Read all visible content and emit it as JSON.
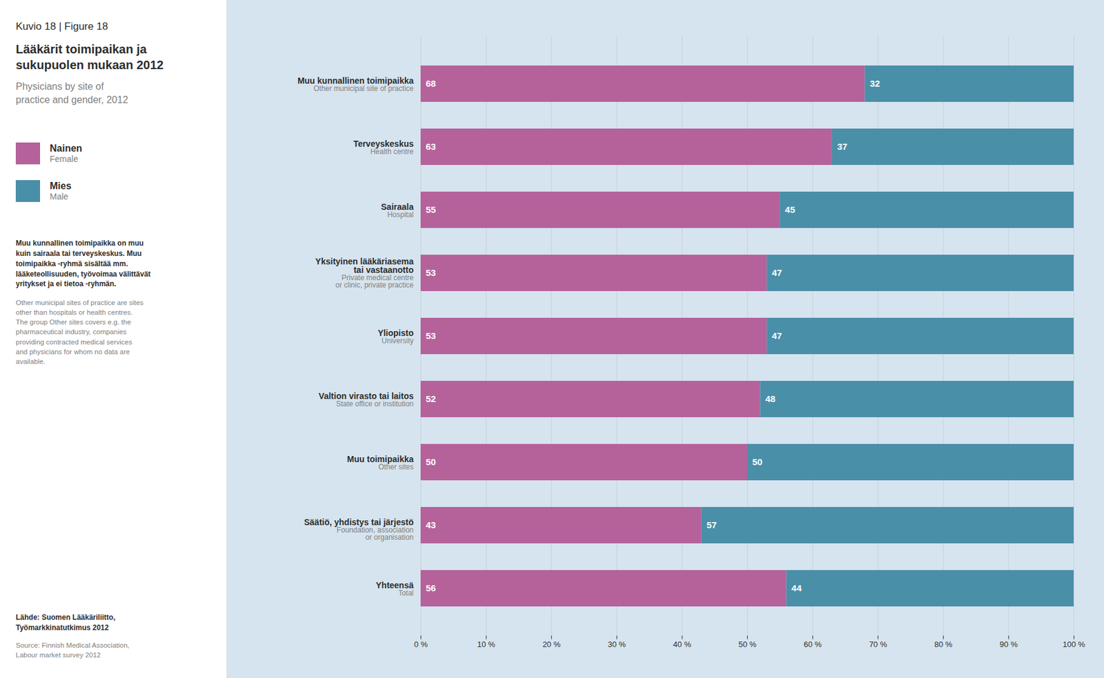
{
  "chart_data": {
    "type": "bar",
    "orientation": "horizontal",
    "stacked": true,
    "title": "Kuvio 18 | Figure 18",
    "subtitle": "Lääkärit toimipaikan ja\nsukupuolen mukaan 2012",
    "annotations": [
      "Physicians by site of\npractice and gender, 2012",
      "Muu kunnallinen toimipaikka on muu\nkuin sairaala tai terveyskeskus. Muu\ntoimipaikka -ryhmä sisältää mm.\nlääketeollisuuden, työvoimaa välittävät\nyritykset ja ei tietoa -ryhmän.",
      "Other municipal sites of practice are sites\nother than hospitals or health centres.\nThe group Other sites covers e.g. the\npharmaceutical industry, companies\nproviding contracted medical services\nand physicians for whom no data are\navailable.",
      "Lähde:   Suomen Lääkäriliitto,\nTyömarkkinatutkimus 2012",
      "Source:  Finnish Medical Association,\nLabour market survey 2012"
    ],
    "categories": [
      [
        "Muu kunnallinen toimipaikka",
        "Other municipal site of practice"
      ],
      [
        "Terveyskeskus",
        "Health centre"
      ],
      [
        "Sairaala",
        "Hospital"
      ],
      [
        "Yksityinen lääkäriasema\ntai vastaanotto",
        "Private medical centre\nor clinic, private practice"
      ],
      [
        "Yliopisto",
        "University"
      ],
      [
        "Valtion virasto tai laitos",
        "State office or institution"
      ],
      [
        "Muu toimipaikka",
        "Other sites"
      ],
      [
        "Säätiö, yhdistys tai järjestö",
        "Foundation, association\nor organisation"
      ],
      [
        "Yhteensä",
        "Total"
      ]
    ],
    "series": [
      {
        "name": [
          "Nainen",
          "Female"
        ],
        "color": "#b5629b",
        "values": [
          68,
          63,
          55,
          53,
          53,
          52,
          50,
          43,
          56
        ]
      },
      {
        "name": [
          "Mies",
          "Male"
        ],
        "color": "#4a8fa8",
        "values": [
          32,
          37,
          45,
          47,
          47,
          48,
          50,
          57,
          44
        ]
      }
    ],
    "xlim": [
      0,
      100
    ],
    "xticks": [
      {
        "value": 0,
        "label": "0 %"
      },
      {
        "value": 10,
        "label": "10 %"
      },
      {
        "value": 20,
        "label": "20 %"
      },
      {
        "value": 30,
        "label": "30 %"
      },
      {
        "value": 40,
        "label": "40 %"
      },
      {
        "value": 50,
        "label": "50 %"
      },
      {
        "value": 60,
        "label": "60 %"
      },
      {
        "value": 70,
        "label": "70 %"
      },
      {
        "value": 80,
        "label": "80 %"
      },
      {
        "value": 90,
        "label": "90 %"
      },
      {
        "value": 100,
        "label": "100 %"
      }
    ],
    "grid": true,
    "legend": "left",
    "data_labels": true
  }
}
